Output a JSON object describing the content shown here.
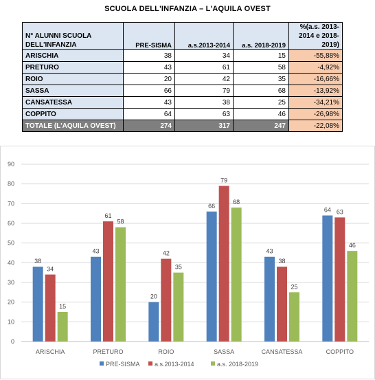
{
  "title": "SCUOLA DELL'INFANZIA – L'AQUILA OVEST",
  "table": {
    "header": {
      "name": "N° ALUNNI SCUOLA DELL'INFANZIA",
      "col1": "PRE-SISMA",
      "col2": "a.s.2013-2014",
      "col3": "a.s. 2018-2019",
      "pct": "%(a.s. 2013-2014 e 2018-2019)"
    },
    "rows": [
      {
        "name": "ARISCHIA",
        "v1": "38",
        "v2": "34",
        "v3": "15",
        "pct": "-55,88%"
      },
      {
        "name": "PRETURO",
        "v1": "43",
        "v2": "61",
        "v3": "58",
        "pct": "-4,92%"
      },
      {
        "name": "ROIO",
        "v1": "20",
        "v2": "42",
        "v3": "35",
        "pct": "-16,66%"
      },
      {
        "name": "SASSA",
        "v1": "66",
        "v2": "79",
        "v3": "68",
        "pct": "-13,92%"
      },
      {
        "name": "CANSATESSA",
        "v1": "43",
        "v2": "38",
        "v3": "25",
        "pct": "-34,21%"
      },
      {
        "name": "COPPITO",
        "v1": "64",
        "v2": "63",
        "v3": "46",
        "pct": "-26,98%"
      }
    ],
    "total": {
      "name": "TOTALE (L'AQUILA OVEST)",
      "v1": "274",
      "v2": "317",
      "v3": "247",
      "pct": "-22,08%"
    }
  },
  "chart_data": {
    "type": "bar",
    "categories": [
      "ARISCHIA",
      "PRETURO",
      "ROIO",
      "SASSA",
      "CANSATESSA",
      "COPPITO"
    ],
    "series": [
      {
        "name": "PRE-SISMA",
        "values": [
          38,
          43,
          20,
          66,
          43,
          64
        ],
        "color": "#4f81bd"
      },
      {
        "name": "a.s.2013-2014",
        "values": [
          34,
          61,
          42,
          79,
          38,
          63
        ],
        "color": "#c0504d"
      },
      {
        "name": "a.s. 2018-2019",
        "values": [
          15,
          58,
          35,
          68,
          25,
          46
        ],
        "color": "#9bbb59"
      }
    ],
    "ylim": [
      0,
      90
    ],
    "yticks": [
      0,
      10,
      20,
      30,
      40,
      50,
      60,
      70,
      80,
      90
    ],
    "grid": true,
    "legend": "bottom"
  }
}
